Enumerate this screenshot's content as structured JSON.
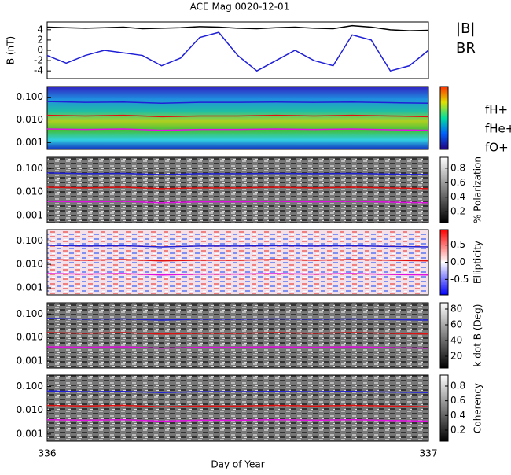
{
  "chart_data": [
    {
      "type": "line",
      "title": "ACE Mag 0020-12-01",
      "ylabel": "B (nT)",
      "x": [
        336.0,
        336.05,
        336.1,
        336.15,
        336.2,
        336.25,
        336.3,
        336.35,
        336.4,
        336.45,
        336.5,
        336.55,
        336.6,
        336.65,
        336.7,
        336.75,
        336.8,
        336.85,
        336.9,
        336.95,
        337.0
      ],
      "series": [
        {
          "name": "|B|",
          "color": "#000000",
          "values": [
            4.5,
            4.4,
            4.3,
            4.4,
            4.5,
            4.2,
            4.3,
            4.4,
            4.6,
            4.5,
            4.3,
            4.2,
            4.4,
            4.5,
            4.3,
            4.2,
            4.8,
            4.5,
            4.0,
            3.8,
            3.9
          ]
        },
        {
          "name": "BR",
          "color": "#1f1fd6",
          "values": [
            -1,
            -2.5,
            -1,
            0,
            -0.5,
            -1,
            -3,
            -1.5,
            2.5,
            3.5,
            -1,
            -4,
            -2,
            0,
            -2,
            -3,
            3,
            2,
            -4,
            -3,
            0
          ]
        }
      ],
      "xlim": [
        336,
        337
      ],
      "ylim": [
        -5.5,
        5.5
      ],
      "yticks": [
        -4,
        -2,
        0,
        2,
        4
      ]
    },
    {
      "type": "spectrogram",
      "ylim": [
        0.0005,
        0.3
      ],
      "yticks": [
        {
          "value": 0.001,
          "label": "0.001"
        },
        {
          "value": 0.01,
          "label": "0.010"
        },
        {
          "value": 0.1,
          "label": "0.100"
        }
      ],
      "colormap": "rainbow",
      "x": [
        336.0,
        336.1,
        336.2,
        336.3,
        336.4,
        336.5,
        336.6,
        336.7,
        336.8,
        336.9,
        337.0
      ],
      "series": [
        {
          "name": "fH+",
          "color": "#1f1fd6",
          "values": [
            0.065,
            0.06,
            0.062,
            0.055,
            0.06,
            0.06,
            0.062,
            0.06,
            0.062,
            0.058,
            0.055
          ]
        },
        {
          "name": "fHe+",
          "color": "#e01010",
          "values": [
            0.016,
            0.015,
            0.016,
            0.014,
            0.015,
            0.015,
            0.016,
            0.015,
            0.016,
            0.015,
            0.014
          ]
        },
        {
          "name": "fO+",
          "color": "#e010e0",
          "values": [
            0.004,
            0.0038,
            0.004,
            0.0035,
            0.0038,
            0.0038,
            0.004,
            0.0038,
            0.004,
            0.0037,
            0.0035
          ]
        }
      ]
    },
    {
      "type": "spectrogram",
      "ylim": [
        0.0005,
        0.3
      ],
      "yticks": [
        {
          "value": 0.001,
          "label": "0.001"
        },
        {
          "value": 0.01,
          "label": "0.010"
        },
        {
          "value": 0.1,
          "label": "0.100"
        }
      ],
      "colormap": "gray",
      "colorbar_label": "% Polarization",
      "clim": [
        0.05,
        0.95
      ],
      "cticks": [
        0.2,
        0.4,
        0.6,
        0.8
      ]
    },
    {
      "type": "spectrogram",
      "ylim": [
        0.0005,
        0.3
      ],
      "yticks": [
        {
          "value": 0.001,
          "label": "0.001"
        },
        {
          "value": 0.01,
          "label": "0.010"
        },
        {
          "value": 0.1,
          "label": "0.100"
        }
      ],
      "colormap": "bwr",
      "colorbar_label": "Ellipticity",
      "clim": [
        -0.95,
        0.95
      ],
      "cticks": [
        {
          "value": -0.5,
          "label": "-0.5"
        },
        {
          "value": 0,
          "label": "0.0"
        },
        {
          "value": 0.5,
          "label": "0.5"
        }
      ]
    },
    {
      "type": "spectrogram",
      "ylim": [
        0.0005,
        0.3
      ],
      "yticks": [
        {
          "value": 0.001,
          "label": "0.001"
        },
        {
          "value": 0.01,
          "label": "0.010"
        },
        {
          "value": 0.1,
          "label": "0.100"
        }
      ],
      "colormap": "gray",
      "colorbar_label": "k dot B (Deg)",
      "clim": [
        5,
        88
      ],
      "cticks": [
        20,
        40,
        60,
        80
      ]
    },
    {
      "type": "spectrogram",
      "ylim": [
        0.0005,
        0.3
      ],
      "yticks": [
        {
          "value": 0.001,
          "label": "0.001"
        },
        {
          "value": 0.01,
          "label": "0.010"
        },
        {
          "value": 0.1,
          "label": "0.100"
        }
      ],
      "colormap": "gray",
      "colorbar_label": "Coherency",
      "clim": [
        0.05,
        0.95
      ],
      "cticks": [
        0.2,
        0.4,
        0.6,
        0.8
      ],
      "xlabel": "Day of Year",
      "xticks": [
        336,
        337
      ]
    }
  ]
}
